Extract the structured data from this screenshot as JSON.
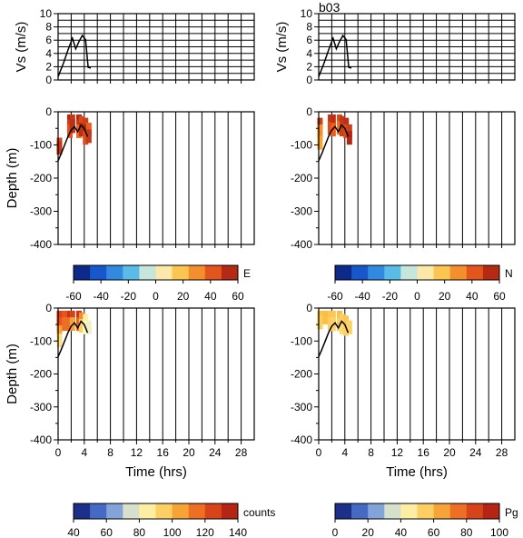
{
  "figure_label": "b03",
  "chart_data": [
    {
      "type": "line",
      "panel": "vs-left",
      "ylabel": "Vs (m/s)",
      "xlim": [
        0,
        30
      ],
      "ylim": [
        0,
        10
      ],
      "yticks": [
        "0",
        "2",
        "4",
        "6",
        "8",
        "10"
      ],
      "grid": true,
      "series": [
        {
          "x": [
            0,
            0.8,
            1.5,
            2.2,
            2.7,
            3.2,
            3.7,
            4.2,
            4.6,
            5.0
          ],
          "y": [
            0.5,
            2.5,
            4.5,
            6.3,
            4.7,
            5.8,
            6.7,
            6.1,
            1.9,
            1.8
          ]
        }
      ]
    },
    {
      "type": "line",
      "panel": "vs-right",
      "ylabel": "Vs (m/s)",
      "xlim": [
        0,
        30
      ],
      "ylim": [
        0,
        10
      ],
      "yticks": [
        "0",
        "2",
        "4",
        "6",
        "8",
        "10"
      ],
      "grid": true,
      "series": [
        {
          "x": [
            0,
            0.8,
            1.5,
            2.2,
            2.7,
            3.2,
            3.7,
            4.2,
            4.6,
            5.0
          ],
          "y": [
            0.5,
            2.5,
            4.5,
            6.3,
            4.7,
            5.8,
            6.7,
            6.1,
            1.9,
            1.8
          ]
        }
      ]
    },
    {
      "type": "heatmap",
      "panel": "depth-E",
      "ylabel": "Depth (m)",
      "xlim": [
        0,
        30
      ],
      "ylim": [
        -400,
        0
      ],
      "yticks": [
        "0",
        "-100",
        "-200",
        "-300",
        "-400"
      ],
      "colorbar": {
        "label": "E",
        "range": [
          -60,
          60
        ],
        "ticks": [
          "-60",
          "-40",
          "-20",
          "0",
          "20",
          "40",
          "60"
        ],
        "scheme": "diverging"
      },
      "line": {
        "x": [
          0,
          0.5,
          1,
          1.5,
          2,
          2.5,
          3,
          3.5,
          4,
          4.5
        ],
        "y": [
          -148,
          -125,
          -100,
          -75,
          -55,
          -45,
          -60,
          -40,
          -50,
          -75
        ]
      },
      "cells": [
        {
          "x": 0.2,
          "y": -100,
          "v": 45
        },
        {
          "x": 0.2,
          "y": -110,
          "v": 50
        },
        {
          "x": 1.8,
          "y": -30,
          "v": 55
        },
        {
          "x": 1.8,
          "y": -45,
          "v": 48
        },
        {
          "x": 1.8,
          "y": -60,
          "v": 42
        },
        {
          "x": 2.2,
          "y": -30,
          "v": 50
        },
        {
          "x": 2.2,
          "y": -45,
          "v": 52
        },
        {
          "x": 3.2,
          "y": -30,
          "v": 55
        },
        {
          "x": 3.2,
          "y": -45,
          "v": 50
        },
        {
          "x": 3.2,
          "y": -60,
          "v": 38
        },
        {
          "x": 3.6,
          "y": -35,
          "v": 45
        },
        {
          "x": 3.6,
          "y": -55,
          "v": 52
        },
        {
          "x": 4.2,
          "y": -40,
          "v": 48
        },
        {
          "x": 4.2,
          "y": -60,
          "v": 55
        },
        {
          "x": 4.2,
          "y": -80,
          "v": 44
        },
        {
          "x": 4.7,
          "y": -55,
          "v": 40
        },
        {
          "x": 4.7,
          "y": -75,
          "v": 50
        }
      ]
    },
    {
      "type": "heatmap",
      "panel": "depth-N",
      "ylabel": "",
      "xlim": [
        0,
        30
      ],
      "ylim": [
        -400,
        0
      ],
      "yticks": [
        "0",
        "-100",
        "-200",
        "-300",
        "-400"
      ],
      "colorbar": {
        "label": "N",
        "range": [
          -60,
          60
        ],
        "ticks": [
          "-60",
          "-40",
          "-20",
          "0",
          "20",
          "40",
          "60"
        ],
        "scheme": "diverging"
      },
      "line": {
        "x": [
          0,
          0.5,
          1,
          1.5,
          2,
          2.5,
          3,
          3.5,
          4,
          4.5
        ],
        "y": [
          -148,
          -125,
          -100,
          -75,
          -55,
          -45,
          -60,
          -40,
          -50,
          -75
        ]
      },
      "cells": [
        {
          "x": 0.2,
          "y": -40,
          "v": 48
        },
        {
          "x": 0.2,
          "y": -60,
          "v": 30
        },
        {
          "x": 0.2,
          "y": -95,
          "v": 25
        },
        {
          "x": 1.8,
          "y": -30,
          "v": 50
        },
        {
          "x": 1.8,
          "y": -50,
          "v": 44
        },
        {
          "x": 2.2,
          "y": -30,
          "v": 52
        },
        {
          "x": 2.2,
          "y": -55,
          "v": 40
        },
        {
          "x": 3.2,
          "y": -30,
          "v": 45
        },
        {
          "x": 3.2,
          "y": -50,
          "v": 35
        },
        {
          "x": 3.6,
          "y": -35,
          "v": 50
        },
        {
          "x": 3.6,
          "y": -55,
          "v": 48
        },
        {
          "x": 4.2,
          "y": -40,
          "v": 52
        },
        {
          "x": 4.2,
          "y": -60,
          "v": 45
        },
        {
          "x": 4.7,
          "y": -60,
          "v": 48
        },
        {
          "x": 4.7,
          "y": -80,
          "v": 55
        }
      ]
    },
    {
      "type": "heatmap",
      "panel": "depth-counts",
      "ylabel": "Depth (m)",
      "xlabel": "Time (hrs)",
      "xlim": [
        0,
        30
      ],
      "ylim": [
        -400,
        0
      ],
      "xticks": [
        "0",
        "4",
        "8",
        "12",
        "16",
        "20",
        "24",
        "28"
      ],
      "yticks": [
        "0",
        "-100",
        "-200",
        "-300",
        "-400"
      ],
      "colorbar": {
        "label": "counts",
        "range": [
          40,
          140
        ],
        "ticks": [
          "40",
          "60",
          "80",
          "100",
          "120",
          "140"
        ],
        "scheme": "sequential"
      },
      "line": {
        "x": [
          0,
          0.5,
          1,
          1.5,
          2,
          2.5,
          3,
          3.5,
          4,
          4.5
        ],
        "y": [
          -148,
          -125,
          -100,
          -75,
          -55,
          -45,
          -60,
          -40,
          -50,
          -75
        ]
      },
      "cells": [
        {
          "x": 0.2,
          "y": -30,
          "v": 125
        },
        {
          "x": 0.2,
          "y": -50,
          "v": 120
        },
        {
          "x": 0.2,
          "y": -75,
          "v": 105
        },
        {
          "x": 0.2,
          "y": -100,
          "v": 90
        },
        {
          "x": 1.0,
          "y": -30,
          "v": 120
        },
        {
          "x": 1.0,
          "y": -50,
          "v": 115
        },
        {
          "x": 1.8,
          "y": -30,
          "v": 130
        },
        {
          "x": 1.8,
          "y": -50,
          "v": 115
        },
        {
          "x": 2.2,
          "y": -30,
          "v": 125
        },
        {
          "x": 2.2,
          "y": -50,
          "v": 105
        },
        {
          "x": 3.2,
          "y": -30,
          "v": 130
        },
        {
          "x": 3.2,
          "y": -50,
          "v": 118
        },
        {
          "x": 3.6,
          "y": -35,
          "v": 110
        },
        {
          "x": 3.6,
          "y": -55,
          "v": 95
        },
        {
          "x": 4.2,
          "y": -40,
          "v": 85
        },
        {
          "x": 4.2,
          "y": -60,
          "v": 80
        },
        {
          "x": 4.7,
          "y": -60,
          "v": 78
        }
      ]
    },
    {
      "type": "heatmap",
      "panel": "depth-Pg",
      "ylabel": "",
      "xlabel": "Time (hrs)",
      "xlim": [
        0,
        30
      ],
      "ylim": [
        -400,
        0
      ],
      "xticks": [
        "0",
        "4",
        "8",
        "12",
        "16",
        "20",
        "24",
        "28"
      ],
      "yticks": [
        "0",
        "-100",
        "-200",
        "-300",
        "-400"
      ],
      "colorbar": {
        "label": "Pg",
        "range": [
          0,
          100
        ],
        "ticks": [
          "0",
          "20",
          "40",
          "60",
          "80",
          "100"
        ],
        "scheme": "sequential"
      },
      "line": {
        "x": [
          0,
          0.5,
          1,
          1.5,
          2,
          2.5,
          3,
          3.5,
          4,
          4.5
        ],
        "y": [
          -148,
          -125,
          -100,
          -75,
          -55,
          -45,
          -60,
          -40,
          -50,
          -75
        ]
      },
      "cells": [
        {
          "x": 0.2,
          "y": -30,
          "v": 58
        },
        {
          "x": 0.2,
          "y": -45,
          "v": 55
        },
        {
          "x": 1.0,
          "y": -30,
          "v": 60
        },
        {
          "x": 1.8,
          "y": -30,
          "v": 58
        },
        {
          "x": 1.8,
          "y": -50,
          "v": 55
        },
        {
          "x": 2.2,
          "y": -30,
          "v": 57
        },
        {
          "x": 2.2,
          "y": -50,
          "v": 54
        },
        {
          "x": 3.2,
          "y": -30,
          "v": 60
        },
        {
          "x": 3.2,
          "y": -50,
          "v": 56
        },
        {
          "x": 3.6,
          "y": -40,
          "v": 55
        },
        {
          "x": 3.6,
          "y": -60,
          "v": 52
        },
        {
          "x": 4.2,
          "y": -45,
          "v": 58
        },
        {
          "x": 4.2,
          "y": -65,
          "v": 55
        },
        {
          "x": 4.7,
          "y": -60,
          "v": 54
        }
      ]
    }
  ]
}
